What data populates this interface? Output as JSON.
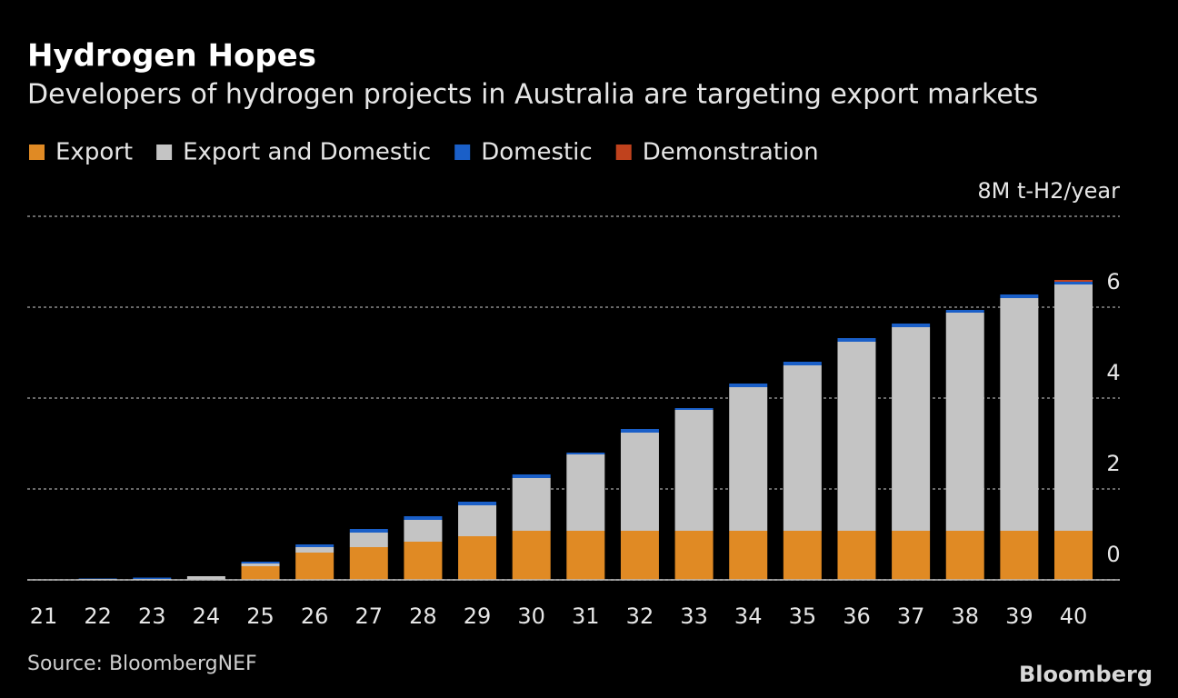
{
  "chart_data": {
    "type": "stacked_bar",
    "title": "Hydrogen Hopes",
    "subtitle": "Developers of hydrogen projects in Australia are targeting export markets",
    "categories": [
      "21",
      "22",
      "23",
      "24",
      "25",
      "26",
      "27",
      "28",
      "29",
      "30",
      "31",
      "32",
      "33",
      "34",
      "35",
      "36",
      "37",
      "38",
      "39",
      "40"
    ],
    "series": [
      {
        "name": "Export",
        "color": "#e08a24",
        "values": [
          0,
          0,
          0,
          0,
          0.3,
          0.6,
          0.72,
          0.84,
          0.96,
          1.08,
          1.08,
          1.08,
          1.08,
          1.08,
          1.08,
          1.08,
          1.08,
          1.08,
          1.08,
          1.08
        ]
      },
      {
        "name": "Export and Domestic",
        "color": "#c4c4c4",
        "values": [
          0,
          0.02,
          0.02,
          0.08,
          0.06,
          0.12,
          0.32,
          0.48,
          0.68,
          1.16,
          1.68,
          2.16,
          2.66,
          3.16,
          3.64,
          4.16,
          4.48,
          4.8,
          5.12,
          5.42
        ]
      },
      {
        "name": "Domestic",
        "color": "#1a5fc8",
        "values": [
          0,
          0.01,
          0.03,
          0,
          0.04,
          0.06,
          0.08,
          0.08,
          0.08,
          0.08,
          0.04,
          0.08,
          0.04,
          0.08,
          0.08,
          0.08,
          0.08,
          0.06,
          0.08,
          0.06
        ]
      },
      {
        "name": "Demonstration",
        "color": "#c0421d",
        "values": [
          0,
          0,
          0,
          0,
          0,
          0,
          0,
          0,
          0,
          0,
          0,
          0,
          0,
          0,
          0,
          0,
          0,
          0,
          0,
          0.04
        ]
      }
    ],
    "ylim": [
      0,
      8
    ],
    "yticks": [
      0,
      2,
      4,
      6,
      {
        "value": 8,
        "label": "8M t-H2/year"
      }
    ],
    "grid": true,
    "source": "Source: BloombergNEF",
    "logo": "Bloomberg"
  }
}
